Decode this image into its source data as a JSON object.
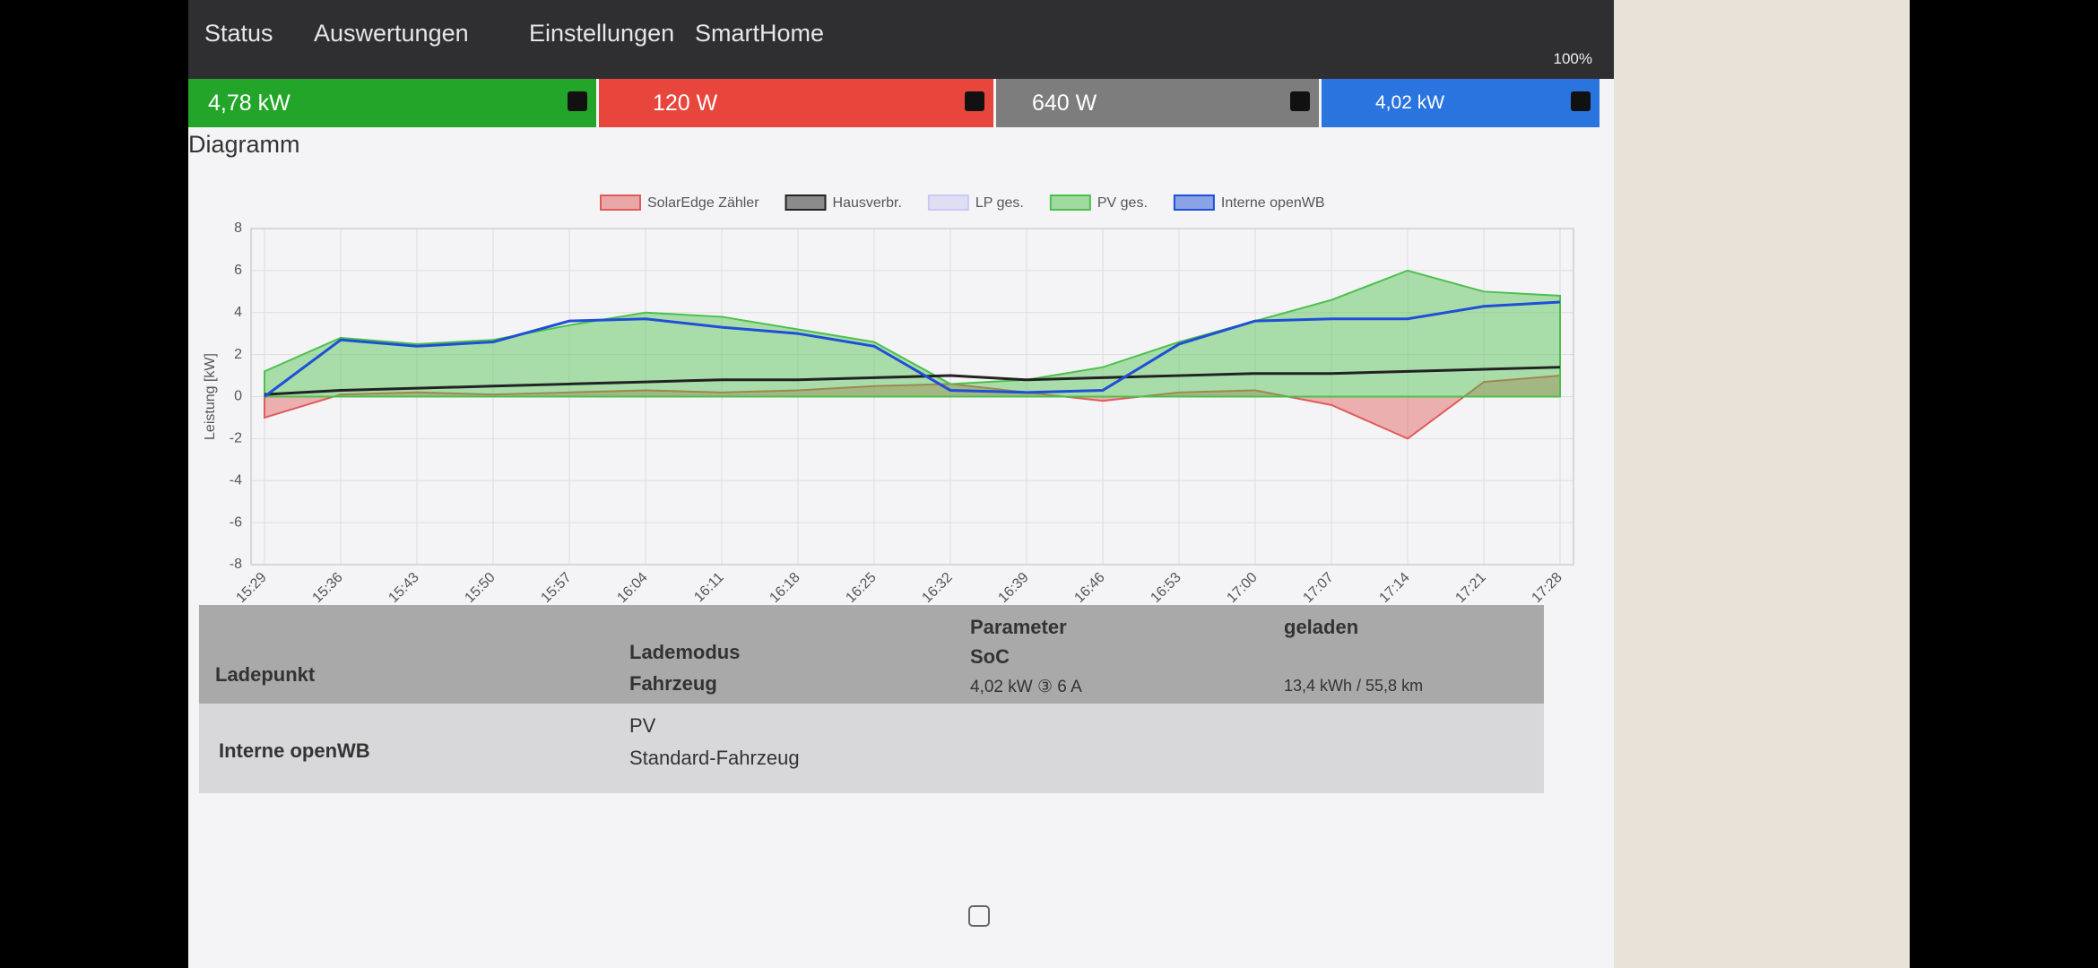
{
  "statusbar": {
    "battery": "100%"
  },
  "nav": {
    "items": [
      "Status",
      "Auswertungen",
      "Einstellungen",
      "SmartHome"
    ]
  },
  "tiles": {
    "pv": "4,78 kW",
    "grid": "120 W",
    "house": "640 W",
    "charge": "4,02 kW"
  },
  "diagram": {
    "title": "Diagramm"
  },
  "chart_data": {
    "type": "line",
    "y_label": "Leistung [kW]",
    "categories": [
      "15:29",
      "15:36",
      "15:43",
      "15:50",
      "15:57",
      "16:04",
      "16:11",
      "16:18",
      "16:25",
      "16:32",
      "16:39",
      "16:46",
      "16:53",
      "17:00",
      "17:07",
      "17:14",
      "17:21",
      "17:28"
    ],
    "ylim": [
      -8,
      8
    ],
    "yticks": [
      -8,
      -6,
      -4,
      -2,
      0,
      2,
      4,
      6,
      8
    ],
    "grid": true,
    "series": [
      {
        "name": "SolarEdge Zähler",
        "color": "#e05a5a",
        "style": "area",
        "values": [
          -1.0,
          0.1,
          0.2,
          0.1,
          0.2,
          0.3,
          0.2,
          0.3,
          0.5,
          0.6,
          0.2,
          -0.2,
          0.2,
          0.3,
          -0.4,
          -2.0,
          0.7,
          1.0
        ]
      },
      {
        "name": "Hausverbr.",
        "color": "#222222",
        "style": "line",
        "values": [
          0.1,
          0.3,
          0.4,
          0.5,
          0.6,
          0.7,
          0.8,
          0.8,
          0.9,
          1.0,
          0.8,
          0.9,
          1.0,
          1.1,
          1.1,
          1.2,
          1.3,
          1.4
        ]
      },
      {
        "name": "LP ges.",
        "color": "#c9c9f2",
        "style": "line"
      },
      {
        "name": "PV ges.",
        "color": "#4cc04c",
        "style": "area",
        "values": [
          1.2,
          2.8,
          2.5,
          2.7,
          3.4,
          4.0,
          3.8,
          3.2,
          2.6,
          0.6,
          0.8,
          1.4,
          2.6,
          3.6,
          4.6,
          6.0,
          5.0,
          4.8
        ]
      },
      {
        "name": "Interne openWB",
        "color": "#1f4fd6",
        "style": "line",
        "values": [
          0,
          2.7,
          2.4,
          2.6,
          3.6,
          3.7,
          3.3,
          3.0,
          2.4,
          0.3,
          0.2,
          0.3,
          2.5,
          3.6,
          3.7,
          3.7,
          4.3,
          4.5
        ]
      }
    ]
  },
  "table": {
    "headers": {
      "ladepunkt": "Ladepunkt",
      "lademodus": "Lademodus",
      "fahrzeug": "Fahrzeug",
      "parameter": "Parameter",
      "soc": "SoC",
      "geladen": "geladen"
    },
    "rows": [
      {
        "ladepunkt": "Interne openWB",
        "lademodus": "PV",
        "fahrzeug": "Standard-Fahrzeug",
        "parameter": "4,02 kW ③ 6 A",
        "geladen": "13,4 kWh / 55,8 km"
      }
    ]
  }
}
